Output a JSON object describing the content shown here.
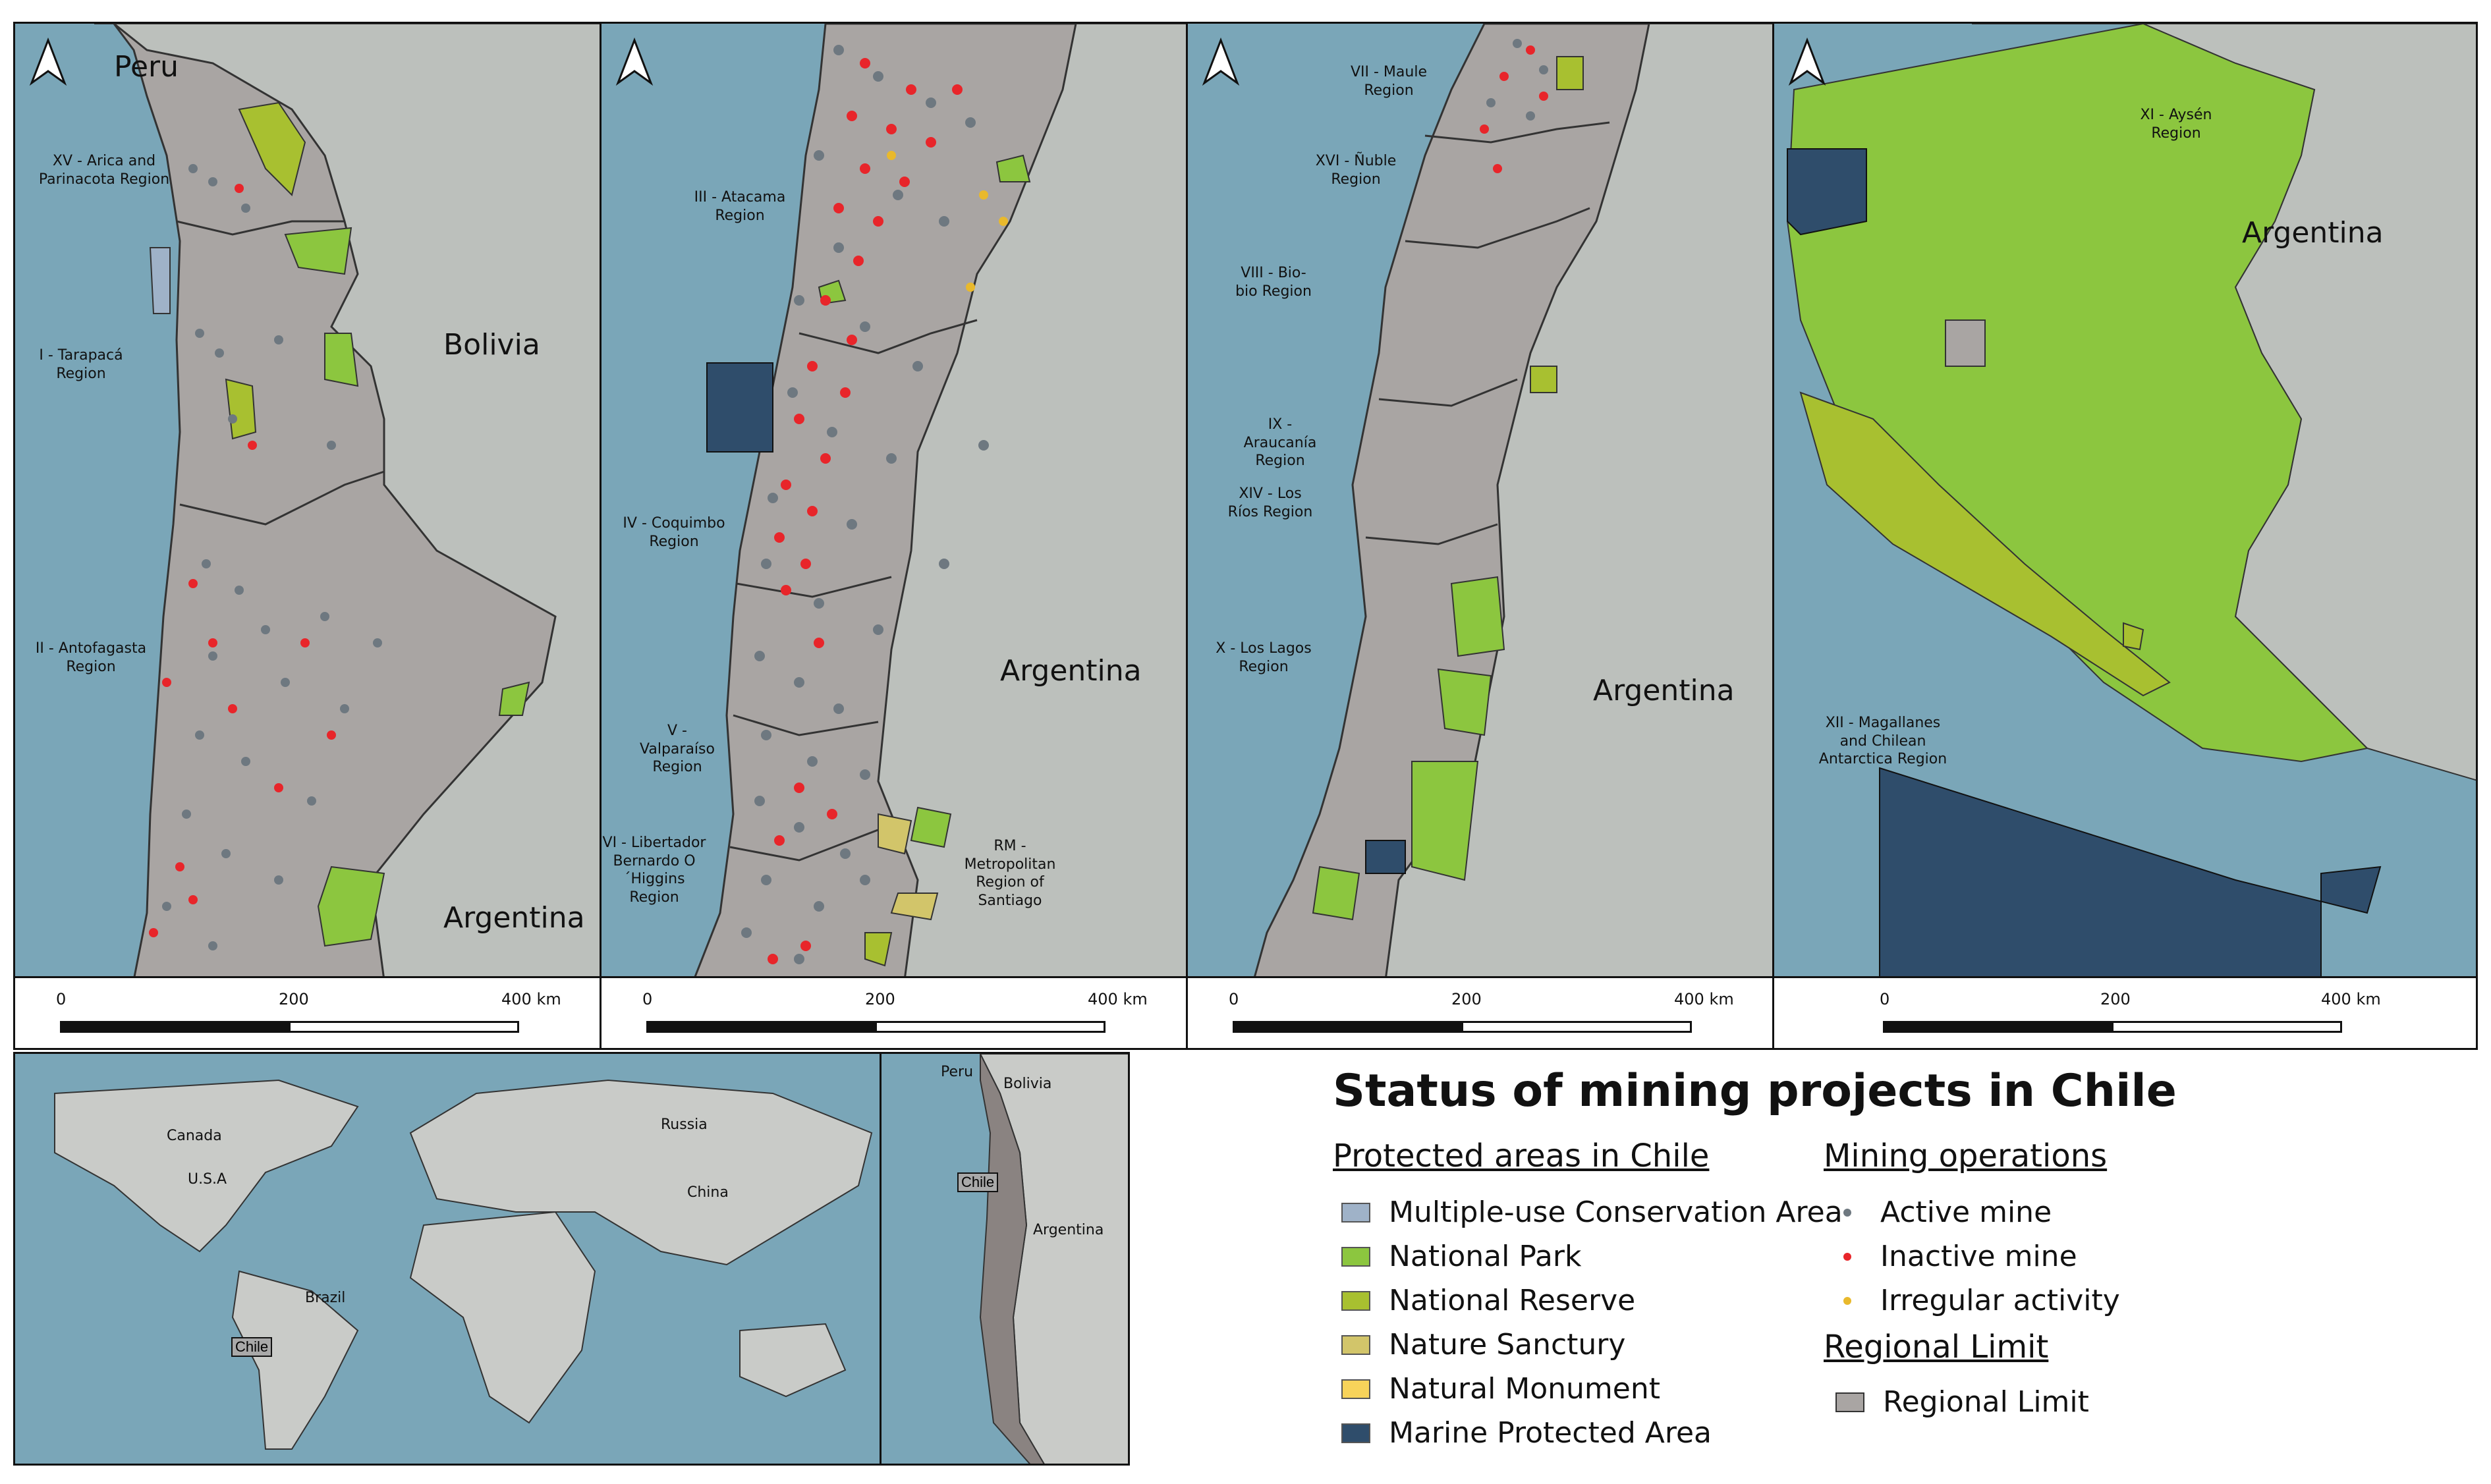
{
  "title": "Status of mining projects in Chile",
  "colors": {
    "sea": "#7aa6b8",
    "foreign_land": "#bcc0bc",
    "chile_land": "#a9a5a3",
    "national_park": "#8cc63f",
    "national_reserve": "#a8c030",
    "multiple_use": "#9fb2c8",
    "nature_sanctuary": "#d2c56a",
    "natural_monument": "#f7d35a",
    "marine_protected": "#2f4d6b",
    "active_mine": "#6e7880",
    "inactive_mine": "#e8252a",
    "irregular": "#e9b92c"
  },
  "panels": [
    {
      "countries": [
        "Peru",
        "Bolivia",
        "Argentina"
      ],
      "regions": [
        "XV - Arica and Parinacota Region",
        "I - Tarapacá Region",
        "II - Antofagasta Region"
      ],
      "scale": {
        "ticks": [
          "0",
          "200",
          "400 km"
        ]
      }
    },
    {
      "countries": [
        "Argentina"
      ],
      "regions": [
        "III - Atacama Region",
        "IV - Coquimbo Region",
        "V - Valparaíso Region",
        "VI - Libertador Bernardo O´Higgins Region",
        "RM - Metropolitan Region of Santiago"
      ],
      "scale": {
        "ticks": [
          "0",
          "200",
          "400 km"
        ]
      }
    },
    {
      "countries": [
        "Argentina"
      ],
      "regions": [
        "VII - Maule Region",
        "XVI - Ñuble Region",
        "VIII - Bio-bio Region",
        "IX - Araucanía Region",
        "XIV - Los Ríos Region",
        "X - Los Lagos Region"
      ],
      "scale": {
        "ticks": [
          "0",
          "200",
          "400 km"
        ]
      }
    },
    {
      "countries": [
        "Argentina"
      ],
      "regions": [
        "XI - Aysén Region",
        "XII - Magallanes and Chilean Antarctica Region"
      ],
      "scale": {
        "ticks": [
          "0",
          "200",
          "400 km"
        ]
      }
    }
  ],
  "world_inset": {
    "labels": [
      "Canada",
      "U.S.A",
      "Russia",
      "China",
      "Brazil",
      "Chile"
    ]
  },
  "south_america_inset": {
    "labels": [
      "Peru",
      "Bolivia",
      "Argentina",
      "Chile"
    ]
  },
  "legend": {
    "protected_heading": "Protected areas in Chile",
    "protected_items": [
      "Multiple-use Conservation Area",
      "National Park",
      "National Reserve",
      "Nature Sanctury",
      "Natural Monument",
      "Marine Protected Area"
    ],
    "mining_heading": "Mining operations",
    "mining_items": [
      "Active mine",
      "Inactive mine",
      "Irregular activity"
    ],
    "limit_heading": "Regional Limit",
    "limit_item": "Regional Limit"
  }
}
